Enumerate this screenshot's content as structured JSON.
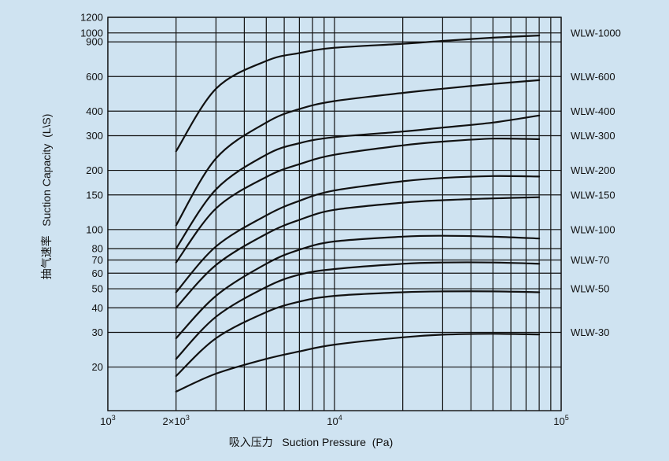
{
  "chart_data": {
    "type": "line",
    "title": "",
    "xlabel": "吸入压力   Suction Pressure  (Pa)",
    "ylabel": "抽气速率   Suction Capacity  (L\\S)",
    "x_scale": "log",
    "y_scale": "log",
    "xlim": [
      1000,
      100000
    ],
    "ylim": [
      12,
      1200
    ],
    "grid": true,
    "x_ticks": [
      {
        "value": 1000,
        "base": "10",
        "exp": "3"
      },
      {
        "value": 2000,
        "base": "2×10",
        "exp": "3"
      },
      {
        "value": 10000,
        "base": "10",
        "exp": "4"
      },
      {
        "value": 100000,
        "base": "10",
        "exp": "5"
      }
    ],
    "x_gridlines": [
      1000,
      2000,
      3000,
      4000,
      5000,
      6000,
      7000,
      8000,
      9000,
      10000,
      20000,
      30000,
      40000,
      50000,
      60000,
      70000,
      80000,
      90000,
      100000
    ],
    "y_ticks": [
      {
        "value": 1200,
        "label": "1200"
      },
      {
        "value": 1000,
        "label": "1000"
      },
      {
        "value": 900,
        "label": "900"
      },
      {
        "value": 600,
        "label": "600"
      },
      {
        "value": 400,
        "label": "400"
      },
      {
        "value": 300,
        "label": "300"
      },
      {
        "value": 200,
        "label": "200"
      },
      {
        "value": 150,
        "label": "150"
      },
      {
        "value": 100,
        "label": "100"
      },
      {
        "value": 80,
        "label": "80"
      },
      {
        "value": 70,
        "label": "70"
      },
      {
        "value": 60,
        "label": "60"
      },
      {
        "value": 50,
        "label": "50"
      },
      {
        "value": 40,
        "label": "40"
      },
      {
        "value": 30,
        "label": "30"
      },
      {
        "value": 20,
        "label": "20"
      }
    ],
    "x": [
      2000,
      3000,
      5000,
      7000,
      10000,
      20000,
      30000,
      50000,
      80000
    ],
    "series": [
      {
        "name": "WLW-1000",
        "label_y": 1000,
        "values": [
          250,
          520,
          720,
          790,
          840,
          880,
          910,
          945,
          970
        ]
      },
      {
        "name": "WLW-600",
        "label_y": 600,
        "values": [
          105,
          230,
          350,
          410,
          450,
          495,
          520,
          550,
          575
        ]
      },
      {
        "name": "WLW-400",
        "label_y": 400,
        "values": [
          80,
          160,
          240,
          275,
          295,
          315,
          330,
          350,
          380
        ]
      },
      {
        "name": "WLW-300",
        "label_y": 300,
        "values": [
          68,
          128,
          185,
          215,
          240,
          268,
          280,
          290,
          288
        ]
      },
      {
        "name": "WLW-200",
        "label_y": 200,
        "values": [
          48,
          82,
          118,
          140,
          158,
          176,
          183,
          187,
          186
        ]
      },
      {
        "name": "WLW-150",
        "label_y": 150,
        "values": [
          40,
          66,
          95,
          112,
          126,
          137,
          141,
          144,
          146
        ]
      },
      {
        "name": "WLW-100",
        "label_y": 100,
        "values": [
          28,
          46,
          67,
          79,
          87,
          92,
          93,
          92,
          90
        ]
      },
      {
        "name": "WLW-70",
        "label_y": 70,
        "values": [
          22,
          36,
          51,
          59,
          63,
          67,
          68,
          68,
          67
        ]
      },
      {
        "name": "WLW-50",
        "label_y": 50,
        "values": [
          18,
          28,
          38,
          43,
          46,
          48,
          48.5,
          48.5,
          48
        ]
      },
      {
        "name": "WLW-30",
        "label_y": 30,
        "values": [
          15,
          18.5,
          22,
          24,
          26,
          28.3,
          29.2,
          29.5,
          29.3
        ]
      }
    ]
  }
}
